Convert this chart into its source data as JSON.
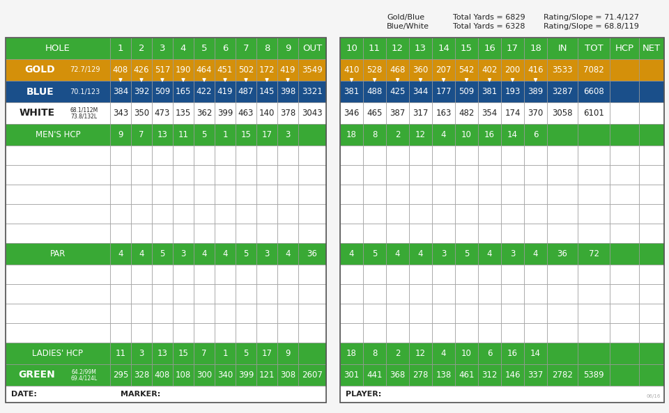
{
  "colors": {
    "green": "#39a935",
    "gold": "#d4900a",
    "blue": "#1a4f8a",
    "white": "#ffffff",
    "border": "#999999",
    "text_dark": "#222222",
    "text_white": "#ffffff",
    "bg": "#f0f0f0"
  },
  "left_table": {
    "holes": [
      "1",
      "2",
      "3",
      "4",
      "5",
      "6",
      "7",
      "8",
      "9",
      "OUT"
    ],
    "gold_label": "GOLD",
    "gold_rating": "72.7/129",
    "gold_vals": [
      "408",
      "426",
      "517",
      "190",
      "464",
      "451",
      "502",
      "172",
      "419",
      "3549"
    ],
    "blue_label": "BLUE",
    "blue_rating": "70.1/123",
    "blue_vals": [
      "384",
      "392",
      "509",
      "165",
      "422",
      "419",
      "487",
      "145",
      "398",
      "3321"
    ],
    "white_vals": [
      "343",
      "350",
      "473",
      "135",
      "362",
      "399",
      "463",
      "140",
      "378",
      "3043"
    ],
    "white_rating1": "68.1/112M",
    "white_rating2": "73.8/132L",
    "mens_hcp_vals": [
      "9",
      "7",
      "13",
      "11",
      "5",
      "1",
      "15",
      "17",
      "3",
      ""
    ],
    "par_vals": [
      "4",
      "4",
      "5",
      "3",
      "4",
      "4",
      "5",
      "3",
      "4",
      "36"
    ],
    "ladies_hcp_vals": [
      "11",
      "3",
      "13",
      "15",
      "7",
      "1",
      "5",
      "17",
      "9",
      ""
    ],
    "green_vals": [
      "295",
      "328",
      "408",
      "108",
      "300",
      "340",
      "399",
      "121",
      "308",
      "2607"
    ],
    "green_rating1": "64.2/99M",
    "green_rating2": "69.4/124L"
  },
  "right_table": {
    "holes": [
      "10",
      "11",
      "12",
      "13",
      "14",
      "15",
      "16",
      "17",
      "18",
      "IN",
      "TOT",
      "HCP",
      "NET"
    ],
    "gold_vals": [
      "410",
      "528",
      "468",
      "360",
      "207",
      "542",
      "402",
      "200",
      "416",
      "3533",
      "7082",
      "",
      ""
    ],
    "blue_vals": [
      "381",
      "488",
      "425",
      "344",
      "177",
      "509",
      "381",
      "193",
      "389",
      "3287",
      "6608",
      "",
      ""
    ],
    "white_vals": [
      "346",
      "465",
      "387",
      "317",
      "163",
      "482",
      "354",
      "174",
      "370",
      "3058",
      "6101",
      "",
      ""
    ],
    "mens_hcp_vals": [
      "18",
      "8",
      "2",
      "12",
      "4",
      "10",
      "16",
      "14",
      "6",
      "",
      "",
      "",
      ""
    ],
    "par_vals": [
      "4",
      "5",
      "4",
      "4",
      "3",
      "5",
      "4",
      "3",
      "4",
      "36",
      "72",
      "",
      ""
    ],
    "ladies_hcp_vals": [
      "18",
      "8",
      "2",
      "12",
      "4",
      "10",
      "6",
      "16",
      "14",
      "",
      "",
      "",
      ""
    ],
    "green_vals": [
      "301",
      "441",
      "368",
      "278",
      "138",
      "461",
      "312",
      "146",
      "337",
      "2782",
      "5389",
      "",
      ""
    ]
  },
  "gold_vals_left": [
    408,
    426,
    517,
    190,
    464,
    451,
    502,
    172,
    419
  ],
  "blue_vals_left": [
    384,
    392,
    509,
    165,
    422,
    419,
    487,
    145,
    398
  ],
  "gold_vals_right": [
    410,
    528,
    468,
    360,
    207,
    542,
    402,
    200,
    416
  ],
  "blue_vals_right": [
    381,
    488,
    425,
    344,
    177,
    509,
    381,
    193,
    389
  ]
}
